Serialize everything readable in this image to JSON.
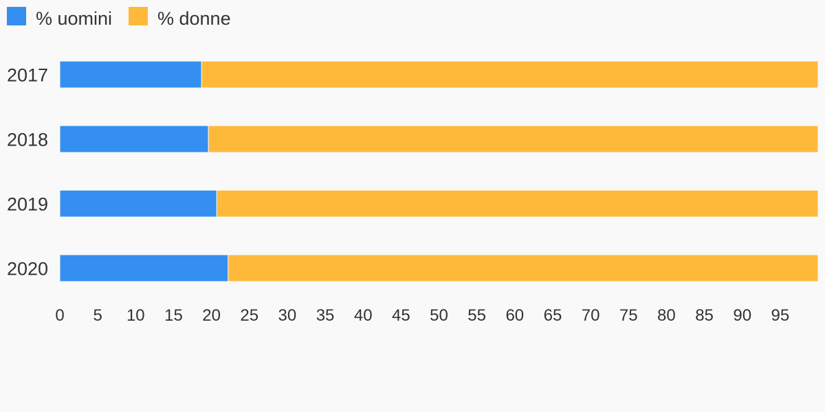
{
  "chart_data": {
    "type": "bar",
    "orientation": "horizontal",
    "stacked": true,
    "categories": [
      "2017",
      "2018",
      "2019",
      "2020"
    ],
    "series": [
      {
        "name": "% uomini",
        "color": "#348ff0",
        "values": [
          18.7,
          19.6,
          20.7,
          22.2
        ]
      },
      {
        "name": "% donne",
        "color": "#ffb93a",
        "values": [
          81.3,
          80.4,
          79.3,
          77.8
        ]
      }
    ],
    "xlim": [
      0,
      100
    ],
    "xticks": [
      "0",
      "5",
      "10",
      "15",
      "20",
      "25",
      "30",
      "35",
      "40",
      "45",
      "50",
      "55",
      "60",
      "65",
      "70",
      "75",
      "80",
      "85",
      "90",
      "95"
    ],
    "grid": false,
    "legend_position": "top-left"
  }
}
